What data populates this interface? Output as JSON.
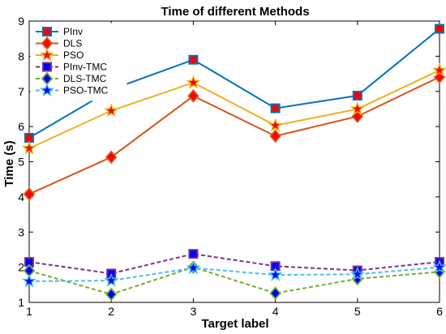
{
  "chart_data": {
    "type": "line",
    "title": "Time of different Methods",
    "xlabel": "Target label",
    "ylabel": "Time (s)",
    "x": [
      1,
      2,
      3,
      4,
      5,
      6
    ],
    "xlim": [
      1,
      6
    ],
    "ylim": [
      1,
      9
    ],
    "xticks": [
      "1",
      "2",
      "3",
      "4",
      "5",
      "6"
    ],
    "yticks": [
      "1",
      "2",
      "3",
      "4",
      "5",
      "6",
      "7",
      "8",
      "9"
    ],
    "grid": false,
    "legend_position": "top-left",
    "series": [
      {
        "name": "PInv",
        "values": [
          5.68,
          7.05,
          7.9,
          6.52,
          6.88,
          8.78
        ],
        "color": "#0072BD",
        "line": "solid",
        "marker": "square",
        "marker_fill": "#FF0000",
        "marker_edge": "#0072BD"
      },
      {
        "name": "DLS",
        "values": [
          4.08,
          5.13,
          6.87,
          5.73,
          6.29,
          7.41
        ],
        "color": "#D95319",
        "line": "solid",
        "marker": "diamond",
        "marker_fill": "#FF0000",
        "marker_edge": "#D95319"
      },
      {
        "name": "PSO",
        "values": [
          5.38,
          6.45,
          7.25,
          6.03,
          6.5,
          7.6
        ],
        "color": "#EDB120",
        "line": "solid",
        "marker": "star",
        "marker_fill": "#FF0000",
        "marker_edge": "#EDB120"
      },
      {
        "name": "PInv-TMC",
        "values": [
          2.15,
          1.82,
          2.38,
          2.03,
          1.91,
          2.15
        ],
        "color": "#7E2F8E",
        "line": "dashed",
        "marker": "square",
        "marker_fill": "#0000FF",
        "marker_edge": "#7E2F8E"
      },
      {
        "name": "DLS-TMC",
        "values": [
          1.9,
          1.23,
          2.0,
          1.26,
          1.67,
          1.87
        ],
        "color": "#77AC30",
        "line": "dashed",
        "marker": "diamond",
        "marker_fill": "#0000FF",
        "marker_edge": "#77AC30"
      },
      {
        "name": "PSO-TMC",
        "values": [
          1.6,
          1.62,
          1.98,
          1.78,
          1.8,
          2.0
        ],
        "color": "#4DBEEE",
        "line": "dashed",
        "marker": "star",
        "marker_fill": "#0000FF",
        "marker_edge": "#4DBEEE"
      }
    ]
  }
}
